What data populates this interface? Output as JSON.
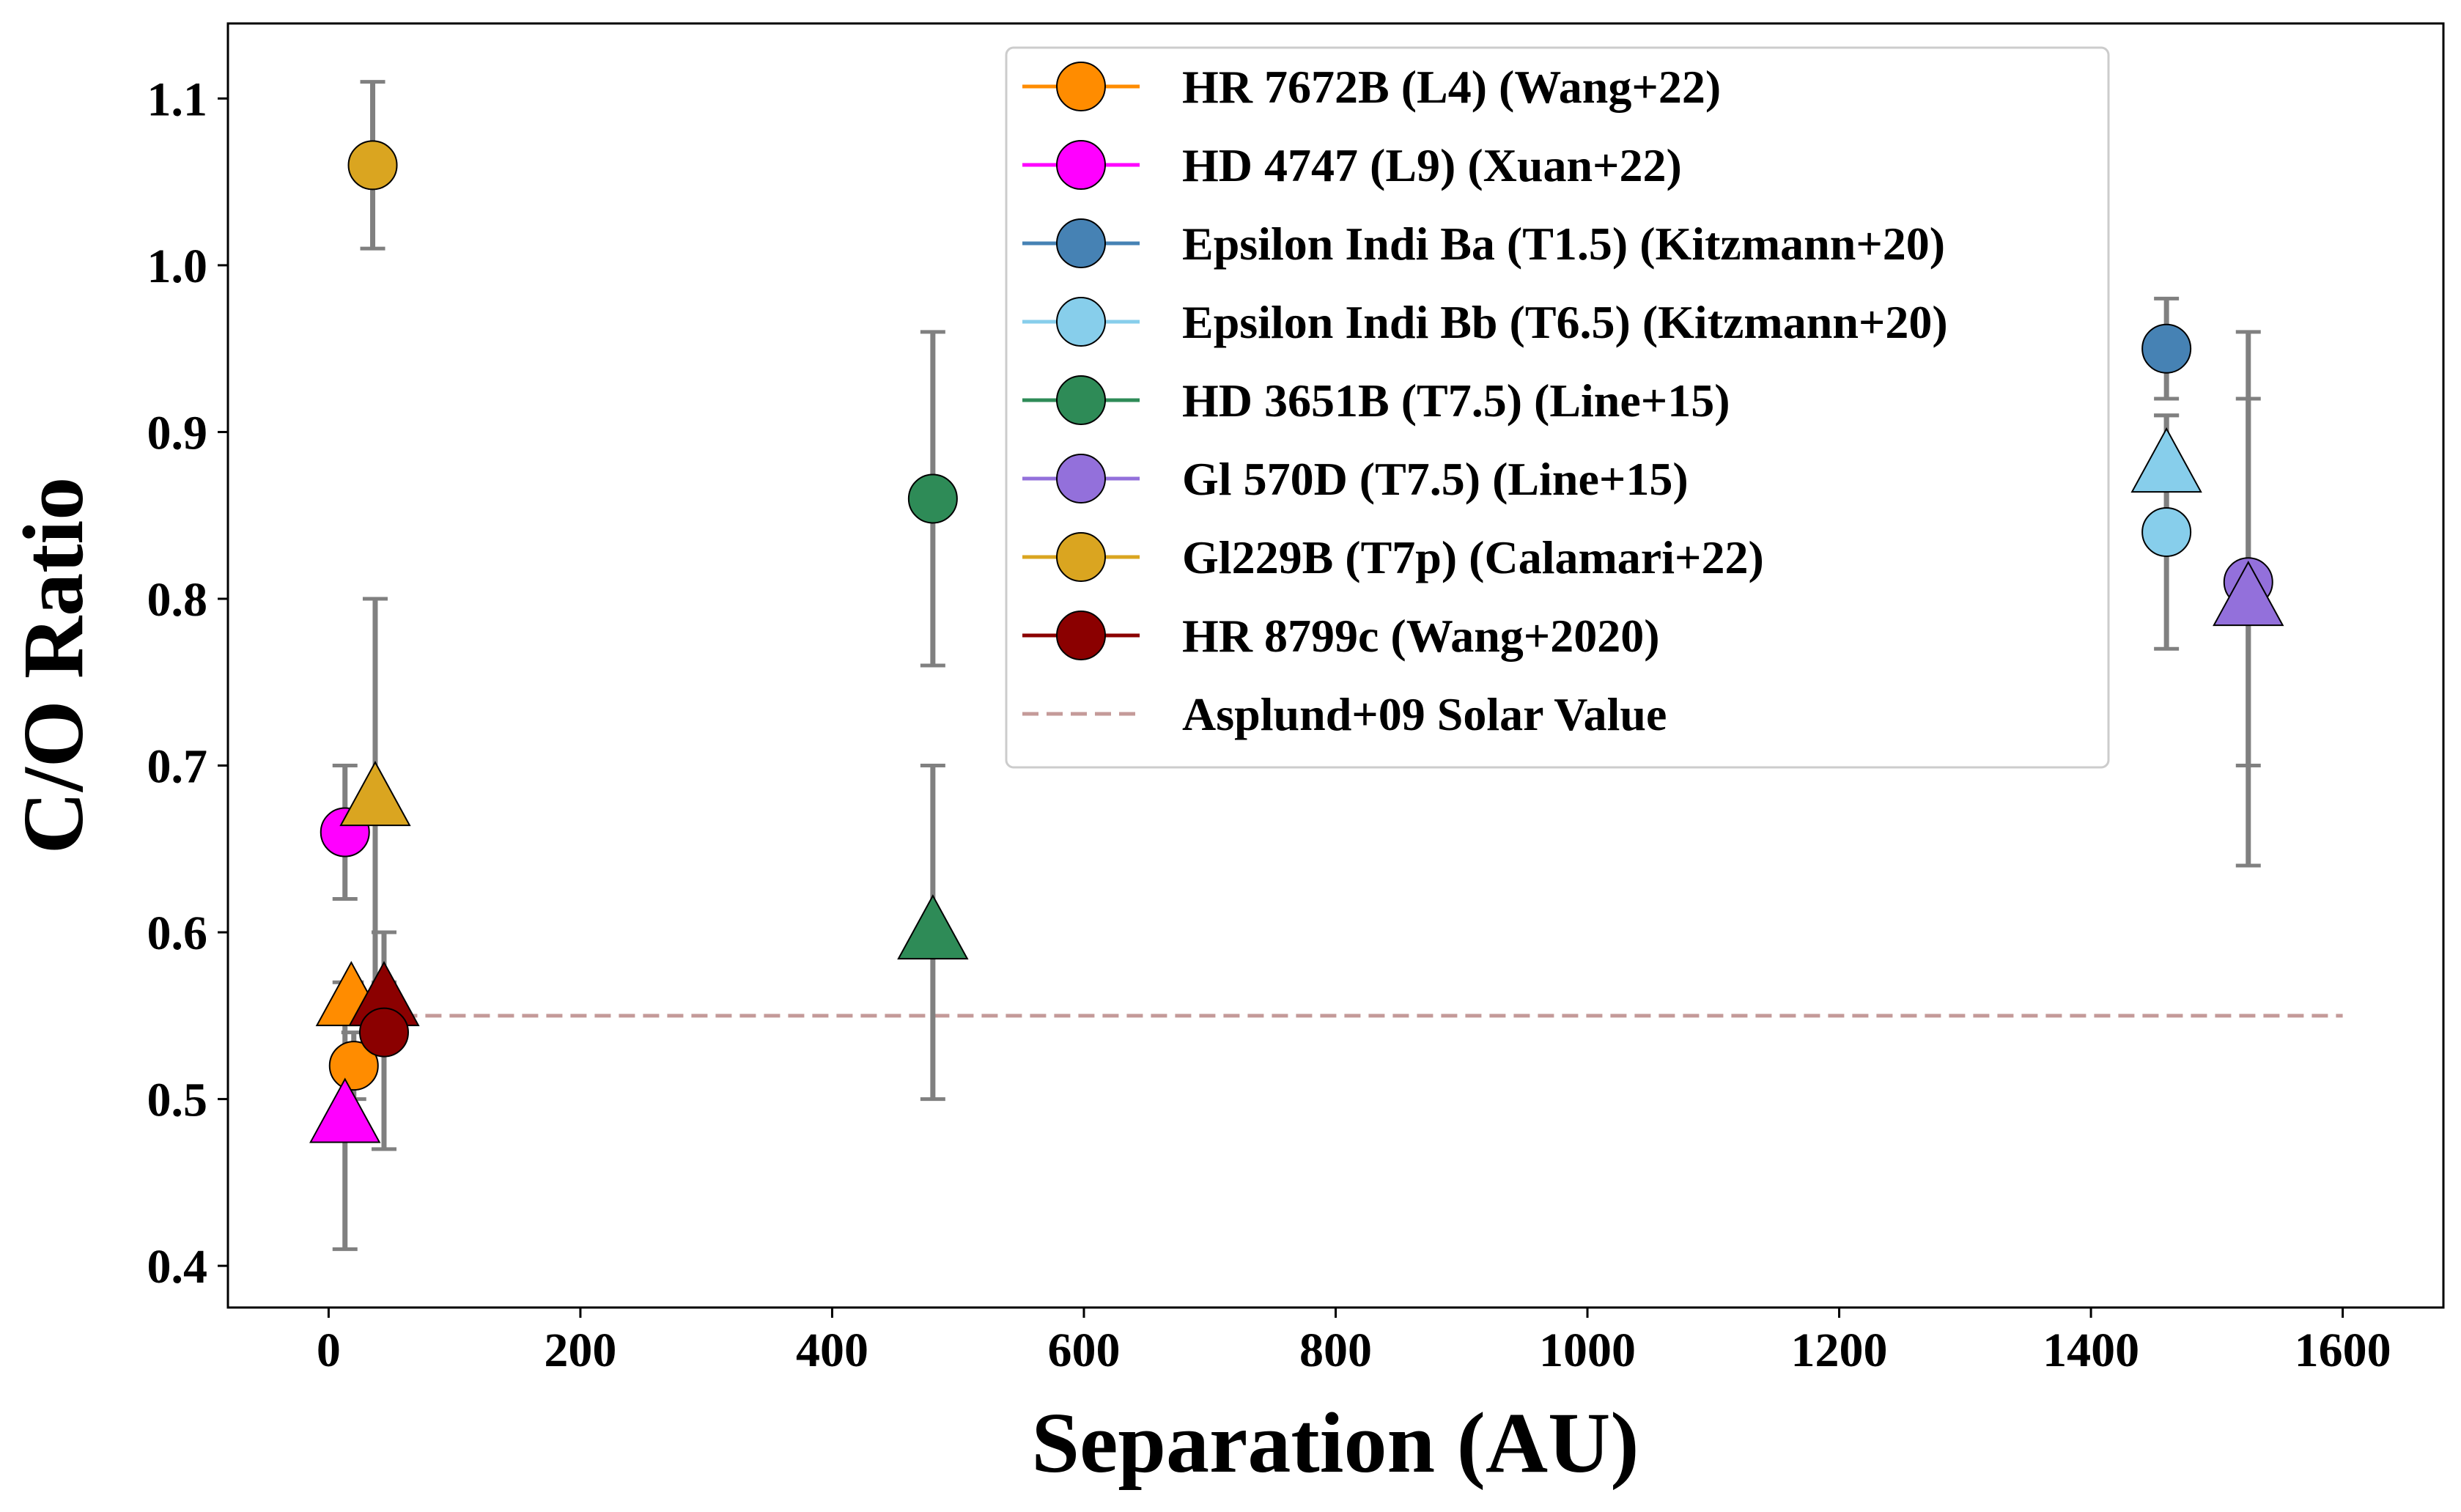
{
  "chart_data": {
    "type": "scatter",
    "xlabel": "Separation (AU)",
    "ylabel": "C/O Ratio",
    "xlim": [
      -80,
      1680
    ],
    "ylim": [
      0.375,
      1.145
    ],
    "xticks": [
      0,
      200,
      400,
      600,
      800,
      1000,
      1200,
      1400,
      1600
    ],
    "xtick_labels": [
      "0",
      "200",
      "400",
      "600",
      "800",
      "1000",
      "1200",
      "1400",
      "1600"
    ],
    "yticks": [
      0.4,
      0.5,
      0.6,
      0.7,
      0.8,
      0.9,
      1.0,
      1.1
    ],
    "ytick_labels": [
      "0.4",
      "0.5",
      "0.6",
      "0.7",
      "0.8",
      "0.9",
      "1.0",
      "1.1"
    ],
    "grid": false,
    "legend_position": "top-right",
    "reference_line": {
      "name": "Asplund+09 Solar Value",
      "y": 0.55,
      "x_range": [
        0,
        1600
      ],
      "color": "#c49a99",
      "style": "dashed"
    },
    "series": [
      {
        "name": "HR 7672B (L4) (Wang+22)",
        "color": "#ff8c00",
        "points": [
          {
            "x": 18,
            "y": 0.56,
            "yerr": [
              0.01,
              0.01
            ],
            "marker": "triangle"
          },
          {
            "x": 20,
            "y": 0.52,
            "yerr": [
              0.02,
              0.02
            ],
            "marker": "circle"
          }
        ]
      },
      {
        "name": "HD 4747 (L9) (Xuan+22)",
        "color": "#ff00ff",
        "points": [
          {
            "x": 13,
            "y": 0.66,
            "yerr": [
              0.04,
              0.04
            ],
            "marker": "circle"
          },
          {
            "x": 13,
            "y": 0.49,
            "yerr": [
              0.08,
              0.08
            ],
            "marker": "triangle"
          }
        ]
      },
      {
        "name": "Epsilon Indi Ba (T1.5) (Kitzmann+20)",
        "color": "#4682b4",
        "points": [
          {
            "x": 1460,
            "y": 0.95,
            "yerr": [
              0.03,
              0.03
            ],
            "marker": "circle"
          }
        ]
      },
      {
        "name": "Epsilon Indi Bb (T6.5) (Kitzmann+20)",
        "color": "#87ceeb",
        "points": [
          {
            "x": 1460,
            "y": 0.88,
            "yerr": [
              0.03,
              0.03
            ],
            "marker": "triangle"
          },
          {
            "x": 1460,
            "y": 0.84,
            "yerr": [
              0.07,
              0.07
            ],
            "marker": "circle"
          }
        ]
      },
      {
        "name": "HD 3651B (T7.5) (Line+15)",
        "color": "#2e8b57",
        "points": [
          {
            "x": 480,
            "y": 0.86,
            "yerr": [
              0.1,
              0.1
            ],
            "marker": "circle"
          },
          {
            "x": 480,
            "y": 0.6,
            "yerr": [
              0.1,
              0.1
            ],
            "marker": "triangle"
          }
        ]
      },
      {
        "name": "Gl 570D (T7.5) (Line+15)",
        "color": "#9370db",
        "points": [
          {
            "x": 1525,
            "y": 0.81,
            "yerr": [
              0.11,
              0.11
            ],
            "marker": "circle"
          },
          {
            "x": 1525,
            "y": 0.8,
            "yerr": [
              0.16,
              0.16
            ],
            "marker": "triangle"
          }
        ]
      },
      {
        "name": "Gl229B (T7p) (Calamari+22)",
        "color": "#daa520",
        "points": [
          {
            "x": 35,
            "y": 1.06,
            "yerr": [
              0.05,
              0.05
            ],
            "marker": "circle"
          },
          {
            "x": 37,
            "y": 0.68,
            "yerr": [
              0.12,
              0.12
            ],
            "marker": "triangle"
          }
        ]
      },
      {
        "name": "HR 8799c (Wang+2020)",
        "color": "#8b0000",
        "points": [
          {
            "x": 44,
            "y": 0.56,
            "yerr": [
              0.01,
              0.01
            ],
            "marker": "triangle"
          },
          {
            "x": 44,
            "y": 0.54,
            "yerr": [
              0.07,
              0.06
            ],
            "marker": "circle"
          }
        ]
      }
    ]
  }
}
